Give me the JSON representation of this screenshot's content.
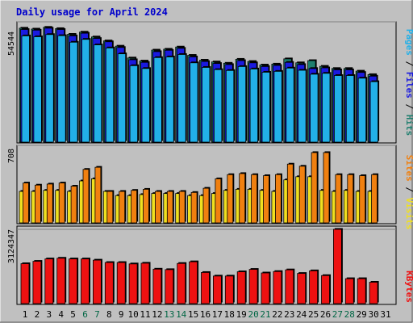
{
  "colors": {
    "background": "#c0c0c0",
    "title": "#0000cc",
    "weekend": "#006644",
    "weekday": "#000000",
    "hits": "#1f7f6f",
    "files": "#1a1ae0",
    "pages": "#22b0e8",
    "visits": "#f0e020",
    "sites": "#f08010",
    "kbytes": "#ee1111"
  },
  "chart_data": [
    {
      "type": "bar",
      "title": "Daily usage for April 2024",
      "y_tick_label": "54544",
      "ylim": [
        0,
        54544
      ],
      "categories": [
        "1",
        "2",
        "3",
        "4",
        "5",
        "6",
        "7",
        "8",
        "9",
        "10",
        "11",
        "12",
        "13",
        "14",
        "15",
        "16",
        "17",
        "18",
        "19",
        "20",
        "21",
        "22",
        "23",
        "24",
        "25",
        "26",
        "27",
        "28",
        "29",
        "30",
        "31"
      ],
      "weekend_days": [
        "6",
        "7",
        "13",
        "14",
        "20",
        "21",
        "27",
        "28"
      ],
      "legend": [
        {
          "label": "Hits",
          "color_key": "hits"
        },
        {
          "label": "Files",
          "color_key": "files"
        },
        {
          "label": "Pages",
          "color_key": "pages"
        }
      ],
      "series": [
        {
          "name": "Hits",
          "values": [
            52000,
            51600,
            52400,
            51800,
            49200,
            50200,
            48000,
            46200,
            43800,
            38400,
            37000,
            42000,
            42400,
            43400,
            39600,
            37400,
            36600,
            36000,
            37800,
            36800,
            35200,
            35600,
            38000,
            36200,
            37200,
            34600,
            33600,
            33600,
            32400,
            30800,
            0
          ]
        },
        {
          "name": "Files",
          "values": [
            51400,
            51100,
            52000,
            51400,
            48500,
            49700,
            47300,
            45800,
            43200,
            37600,
            36400,
            41300,
            41900,
            42800,
            38900,
            36800,
            35900,
            35400,
            37200,
            36200,
            34500,
            35000,
            36400,
            35400,
            33600,
            33900,
            33000,
            33000,
            31800,
            30100,
            0
          ]
        },
        {
          "name": "Pages",
          "values": [
            48500,
            48100,
            49100,
            48600,
            45600,
            46900,
            44400,
            43000,
            40300,
            34900,
            33600,
            38600,
            38900,
            40000,
            36200,
            34100,
            33100,
            32700,
            34500,
            33400,
            31900,
            32300,
            33800,
            32800,
            31000,
            31400,
            30400,
            30400,
            29200,
            27600,
            0
          ]
        }
      ]
    },
    {
      "type": "bar",
      "y_tick_label": "708",
      "ylim": [
        0,
        708
      ],
      "legend": [
        {
          "label": "Visits",
          "color_key": "visits"
        },
        {
          "label": "Sites",
          "color_key": "sites"
        }
      ],
      "series": [
        {
          "name": "Visits",
          "values": [
            300,
            300,
            310,
            310,
            300,
            400,
            420,
            300,
            260,
            260,
            270,
            280,
            280,
            280,
            260,
            260,
            280,
            310,
            320,
            320,
            310,
            300,
            410,
            440,
            440,
            310,
            300,
            310,
            300,
            300,
            0
          ]
        },
        {
          "name": "Sites",
          "values": [
            380,
            360,
            370,
            380,
            350,
            510,
            530,
            300,
            300,
            310,
            320,
            300,
            300,
            300,
            290,
            330,
            420,
            460,
            470,
            460,
            450,
            460,
            560,
            540,
            670,
            670,
            460,
            460,
            450,
            460,
            0
          ]
        }
      ]
    },
    {
      "type": "bar",
      "y_tick_label": "3124347",
      "ylim": [
        0,
        3124347
      ],
      "legend": [
        {
          "label": "KBytes",
          "color_key": "kbytes"
        }
      ],
      "series": [
        {
          "name": "KBytes",
          "values": [
            1680000,
            1780000,
            1880000,
            1910000,
            1880000,
            1880000,
            1830000,
            1730000,
            1730000,
            1670000,
            1700000,
            1450000,
            1430000,
            1690000,
            1760000,
            1310000,
            1160000,
            1160000,
            1340000,
            1440000,
            1290000,
            1350000,
            1420000,
            1270000,
            1380000,
            1180000,
            3124347,
            1050000,
            1050000,
            900000,
            0
          ]
        }
      ]
    }
  ]
}
